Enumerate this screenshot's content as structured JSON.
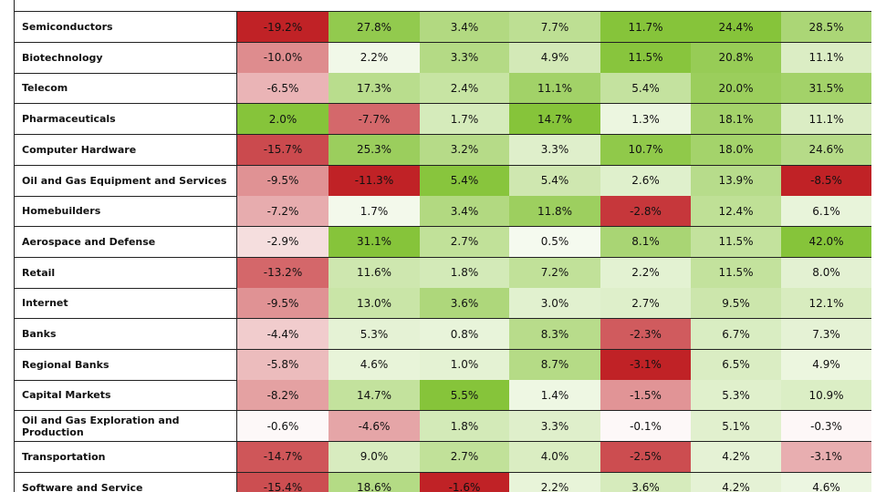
{
  "table": {
    "rows": [
      {
        "label": "Semiconductors",
        "cells": [
          "-19.2%",
          "27.8%",
          "3.4%",
          "7.7%",
          "11.7%",
          "24.4%",
          "28.5%"
        ]
      },
      {
        "label": "Biotechnology",
        "cells": [
          "-10.0%",
          "2.2%",
          "3.3%",
          "4.9%",
          "11.5%",
          "20.8%",
          "11.1%"
        ]
      },
      {
        "label": "Telecom",
        "cells": [
          "-6.5%",
          "17.3%",
          "2.4%",
          "11.1%",
          "5.4%",
          "20.0%",
          "31.5%"
        ]
      },
      {
        "label": "Pharmaceuticals",
        "cells": [
          "2.0%",
          "-7.7%",
          "1.7%",
          "14.7%",
          "1.3%",
          "18.1%",
          "11.1%"
        ]
      },
      {
        "label": "Computer Hardware",
        "cells": [
          "-15.7%",
          "25.3%",
          "3.2%",
          "3.3%",
          "10.7%",
          "18.0%",
          "24.6%"
        ]
      },
      {
        "label": "Oil and Gas Equipment and Services",
        "cells": [
          "-9.5%",
          "-11.3%",
          "5.4%",
          "5.4%",
          "2.6%",
          "13.9%",
          "-8.5%"
        ]
      },
      {
        "label": "Homebuilders",
        "cells": [
          "-7.2%",
          "1.7%",
          "3.4%",
          "11.8%",
          "-2.8%",
          "12.4%",
          "6.1%"
        ]
      },
      {
        "label": "Aerospace and Defense",
        "cells": [
          "-2.9%",
          "31.1%",
          "2.7%",
          "0.5%",
          "8.1%",
          "11.5%",
          "42.0%"
        ]
      },
      {
        "label": "Retail",
        "cells": [
          "-13.2%",
          "11.6%",
          "1.8%",
          "7.2%",
          "2.2%",
          "11.5%",
          "8.0%"
        ]
      },
      {
        "label": "Internet",
        "cells": [
          "-9.5%",
          "13.0%",
          "3.6%",
          "3.0%",
          "2.7%",
          "9.5%",
          "12.1%"
        ]
      },
      {
        "label": "Banks",
        "cells": [
          "-4.4%",
          "5.3%",
          "0.8%",
          "8.3%",
          "-2.3%",
          "6.7%",
          "7.3%"
        ]
      },
      {
        "label": "Regional Banks",
        "cells": [
          "-5.8%",
          "4.6%",
          "1.0%",
          "8.7%",
          "-3.1%",
          "6.5%",
          "4.9%"
        ]
      },
      {
        "label": "Capital Markets",
        "cells": [
          "-8.2%",
          "14.7%",
          "5.5%",
          "1.4%",
          "-1.5%",
          "5.3%",
          "10.9%"
        ]
      },
      {
        "label": "Oil and Gas Exploration and Production",
        "cells": [
          "-0.6%",
          "-4.6%",
          "1.8%",
          "3.3%",
          "-0.1%",
          "5.1%",
          "-0.3%"
        ]
      },
      {
        "label": "Transportation",
        "cells": [
          "-14.7%",
          "9.0%",
          "2.7%",
          "4.0%",
          "-2.5%",
          "4.2%",
          "-3.1%"
        ]
      },
      {
        "label": "Software and Service",
        "cells": [
          "-15.4%",
          "18.6%",
          "-1.6%",
          "2.2%",
          "3.6%",
          "4.2%",
          "4.6%"
        ]
      }
    ]
  }
}
